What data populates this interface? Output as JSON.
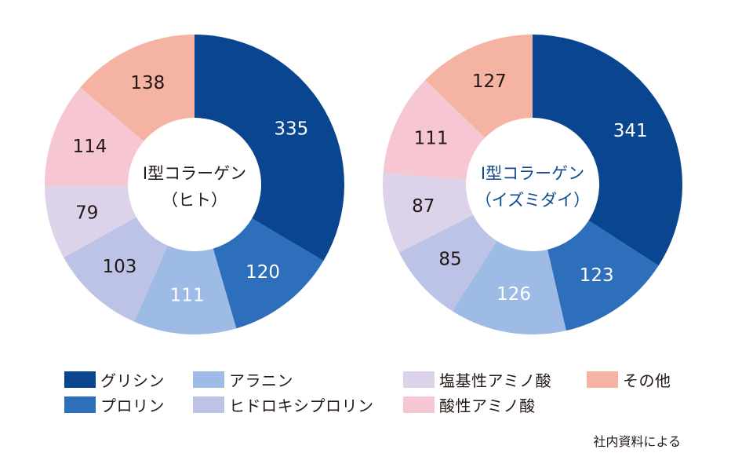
{
  "chart_data": [
    {
      "type": "pie",
      "title": "Ⅰ型コラーゲン\n（ヒト）",
      "categories": [
        "グリシン",
        "プロリン",
        "アラニン",
        "ヒドロキシプロリン",
        "塩基性アミノ酸",
        "酸性アミノ酸",
        "その他"
      ],
      "values": [
        335,
        120,
        111,
        103,
        79,
        114,
        138
      ],
      "title_color": "#231815"
    },
    {
      "type": "pie",
      "title": "Ⅰ型コラーゲン\n（イズミダイ）",
      "categories": [
        "グリシン",
        "プロリン",
        "アラニン",
        "ヒドロキシプロリン",
        "塩基性アミノ酸",
        "酸性アミノ酸",
        "その他"
      ],
      "values": [
        341,
        123,
        126,
        85,
        87,
        111,
        127
      ],
      "title_color": "#0e4a8f"
    }
  ],
  "colors": [
    "#0a4690",
    "#2e6fbb",
    "#9dbbe4",
    "#bcc3e6",
    "#dcd3ea",
    "#f6c7d2",
    "#f4b3a3"
  ],
  "label_colors": [
    "#ffffff",
    "#ffffff",
    "#ffffff",
    "#231815",
    "#231815",
    "#231815",
    "#231815"
  ],
  "legend": [
    {
      "label": "グリシン"
    },
    {
      "label": "プロリン"
    },
    {
      "label": "アラニン"
    },
    {
      "label": "ヒドロキシプロリン"
    },
    {
      "label": "塩基性アミノ酸"
    },
    {
      "label": "酸性アミノ酸"
    },
    {
      "label": "その他"
    }
  ],
  "source": "社内資料による"
}
